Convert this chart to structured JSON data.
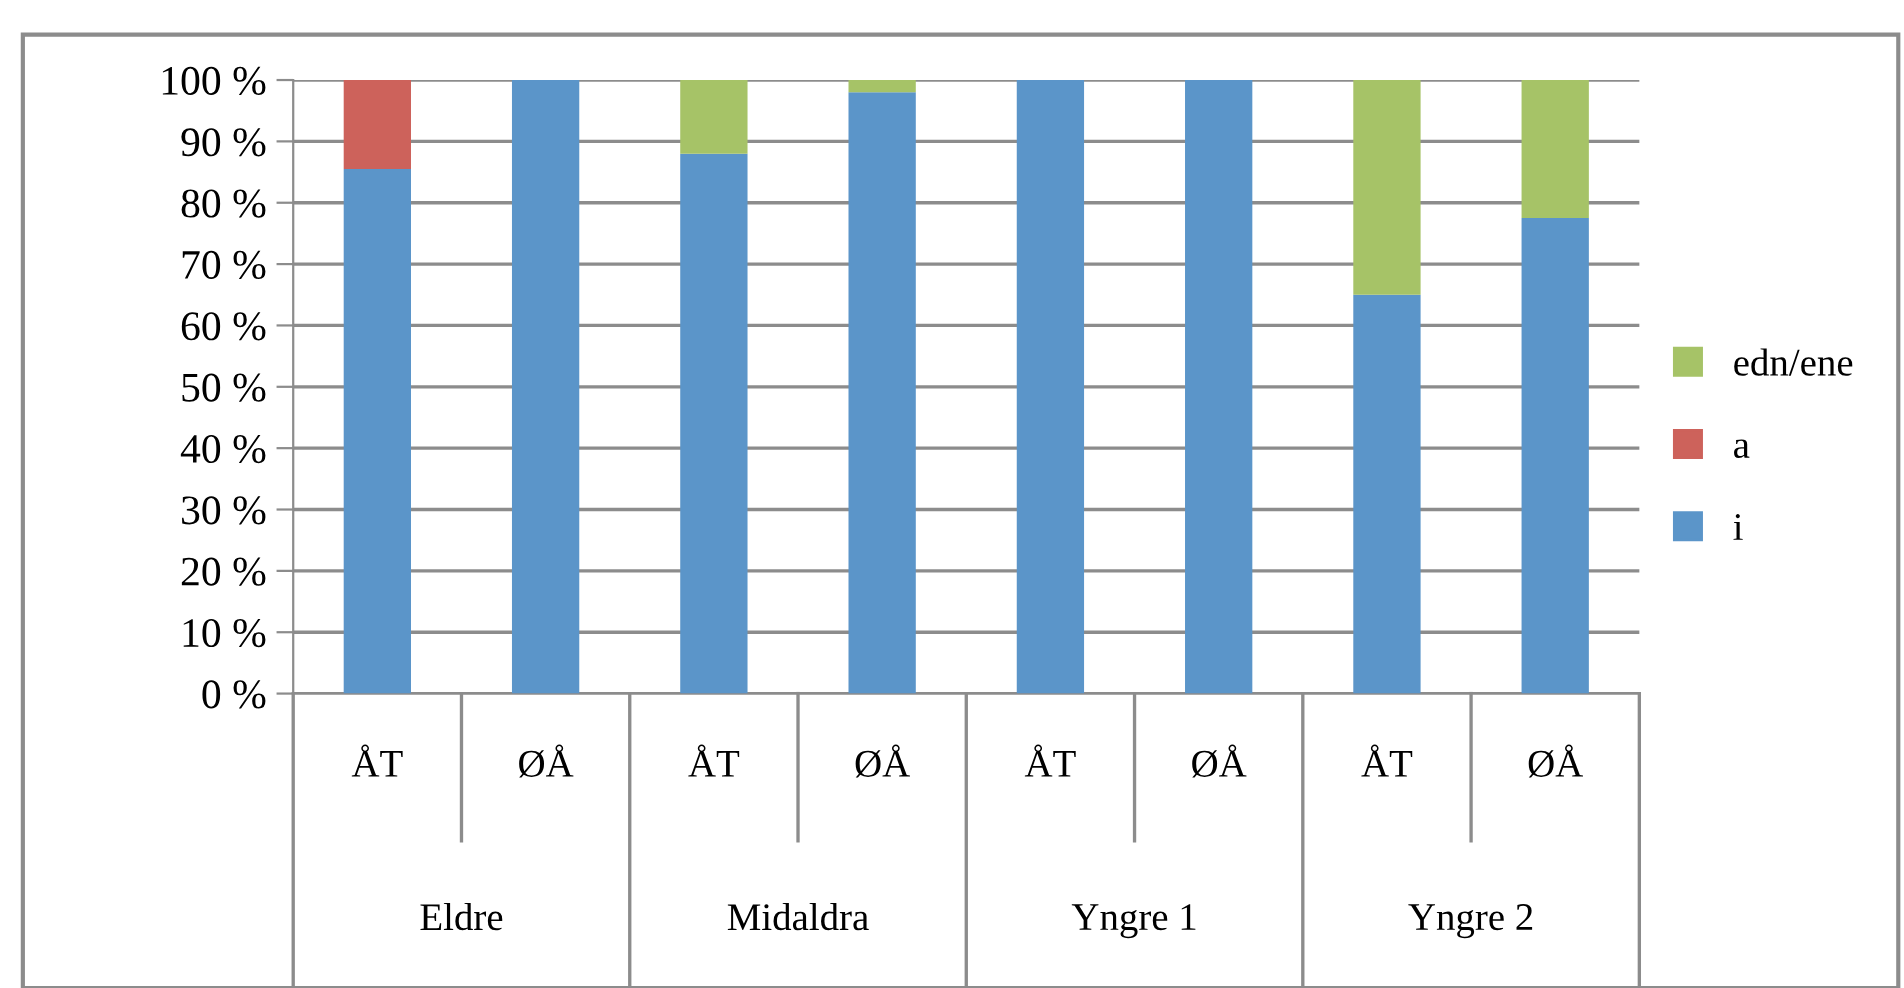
{
  "chart_data": {
    "type": "bar",
    "stacked": true,
    "categories": [
      "ÅT",
      "ØÅ",
      "ÅT",
      "ØÅ",
      "ÅT",
      "ØÅ",
      "ÅT",
      "ØÅ"
    ],
    "annotations": [
      "Eldre",
      "Midaldra",
      "Yngre 1",
      "Yngre 2"
    ],
    "series": [
      {
        "name": "i",
        "color": "#5b95c9",
        "values": [
          85.5,
          100,
          88,
          98,
          100,
          100,
          65,
          77.5
        ]
      },
      {
        "name": "a",
        "color": "#cd625b",
        "values": [
          14.5,
          0,
          0,
          0,
          0,
          0,
          0,
          0
        ]
      },
      {
        "name": "edn/ene",
        "color": "#a6c367",
        "values": [
          0,
          0,
          12,
          2,
          0,
          0,
          35,
          22.5
        ]
      }
    ],
    "ylim": [
      0,
      100
    ],
    "yticks": [
      {
        "value": 0,
        "label": "0 %"
      },
      {
        "value": 10,
        "label": "10 %"
      },
      {
        "value": 20,
        "label": "20 %"
      },
      {
        "value": 30,
        "label": "30 %"
      },
      {
        "value": 40,
        "label": "40 %"
      },
      {
        "value": 50,
        "label": "50 %"
      },
      {
        "value": 60,
        "label": "60 %"
      },
      {
        "value": 70,
        "label": "70 %"
      },
      {
        "value": 80,
        "label": "80 %"
      },
      {
        "value": 90,
        "label": "90 %"
      },
      {
        "value": 100,
        "label": "100 %"
      }
    ],
    "grid": "y",
    "legend": "right"
  }
}
